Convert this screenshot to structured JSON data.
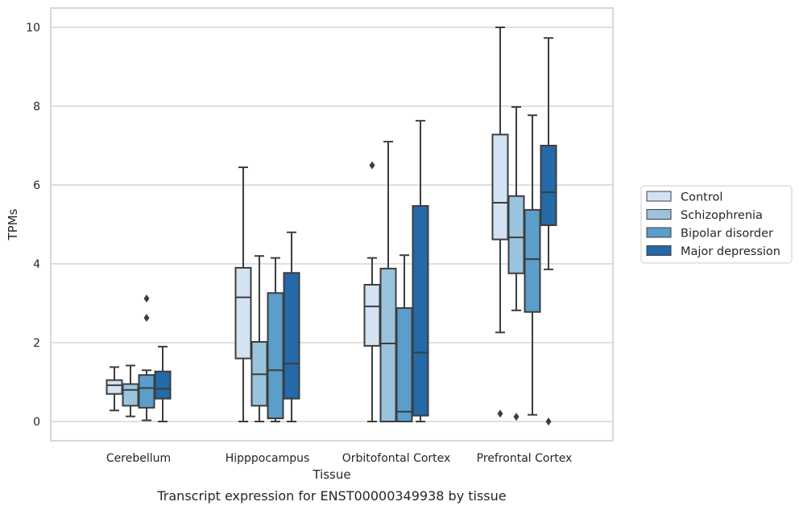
{
  "chart_data": {
    "type": "box",
    "title": "Transcript expression for ENST00000349938 by tissue",
    "xlabel": "Tissue",
    "ylabel": "TPMs",
    "ylim": [
      -0.5,
      10.5
    ],
    "yticks": [
      0,
      2,
      4,
      6,
      8,
      10
    ],
    "grid": "horizontal",
    "legend_position": "right",
    "categories": [
      "Cerebellum",
      "Hipppocampus",
      "Orbitofontal Cortex",
      "Prefrontal Cortex"
    ],
    "series": [
      {
        "name": "Control",
        "color": "#d3e3f3",
        "boxes": [
          {
            "whislo": 0.28,
            "q1": 0.7,
            "med": 0.92,
            "q3": 1.05,
            "whishi": 1.38,
            "fliers": []
          },
          {
            "whislo": 0.0,
            "q1": 1.6,
            "med": 3.15,
            "q3": 3.9,
            "whishi": 6.45,
            "fliers": []
          },
          {
            "whislo": 0.0,
            "q1": 1.92,
            "med": 2.92,
            "q3": 3.47,
            "whishi": 4.15,
            "fliers": [
              6.5
            ]
          },
          {
            "whislo": 2.26,
            "q1": 4.62,
            "med": 5.55,
            "q3": 7.28,
            "whishi": 10.0,
            "fliers": [
              0.2
            ]
          }
        ]
      },
      {
        "name": "Schizophrenia",
        "color": "#9ac4de",
        "boxes": [
          {
            "whislo": 0.13,
            "q1": 0.4,
            "med": 0.8,
            "q3": 0.95,
            "whishi": 1.42,
            "fliers": []
          },
          {
            "whislo": 0.0,
            "q1": 0.4,
            "med": 1.2,
            "q3": 2.02,
            "whishi": 4.2,
            "fliers": []
          },
          {
            "whislo": 0.0,
            "q1": 0.0,
            "med": 1.98,
            "q3": 3.88,
            "whishi": 7.1,
            "fliers": []
          },
          {
            "whislo": 2.82,
            "q1": 3.76,
            "med": 4.67,
            "q3": 5.72,
            "whishi": 7.98,
            "fliers": [
              0.12
            ]
          }
        ]
      },
      {
        "name": "Bipolar disorder",
        "color": "#5a9ec9",
        "boxes": [
          {
            "whislo": 0.03,
            "q1": 0.35,
            "med": 0.85,
            "q3": 1.18,
            "whishi": 1.3,
            "fliers": [
              2.63,
              3.12
            ]
          },
          {
            "whislo": 0.0,
            "q1": 0.08,
            "med": 1.3,
            "q3": 3.26,
            "whishi": 4.15,
            "fliers": []
          },
          {
            "whislo": 0.0,
            "q1": 0.0,
            "med": 0.25,
            "q3": 2.88,
            "whishi": 4.22,
            "fliers": []
          },
          {
            "whislo": 0.17,
            "q1": 2.78,
            "med": 4.12,
            "q3": 5.37,
            "whishi": 7.77,
            "fliers": []
          }
        ]
      },
      {
        "name": "Major depression",
        "color": "#2469a8",
        "boxes": [
          {
            "whislo": 0.0,
            "q1": 0.58,
            "med": 0.83,
            "q3": 1.27,
            "whishi": 1.9,
            "fliers": []
          },
          {
            "whislo": 0.0,
            "q1": 0.58,
            "med": 1.47,
            "q3": 3.77,
            "whishi": 4.8,
            "fliers": []
          },
          {
            "whislo": 0.0,
            "q1": 0.15,
            "med": 1.75,
            "q3": 5.47,
            "whishi": 7.63,
            "fliers": []
          },
          {
            "whislo": 3.86,
            "q1": 4.98,
            "med": 5.82,
            "q3": 7.0,
            "whishi": 9.73,
            "fliers": [
              0.0
            ]
          }
        ]
      }
    ]
  }
}
